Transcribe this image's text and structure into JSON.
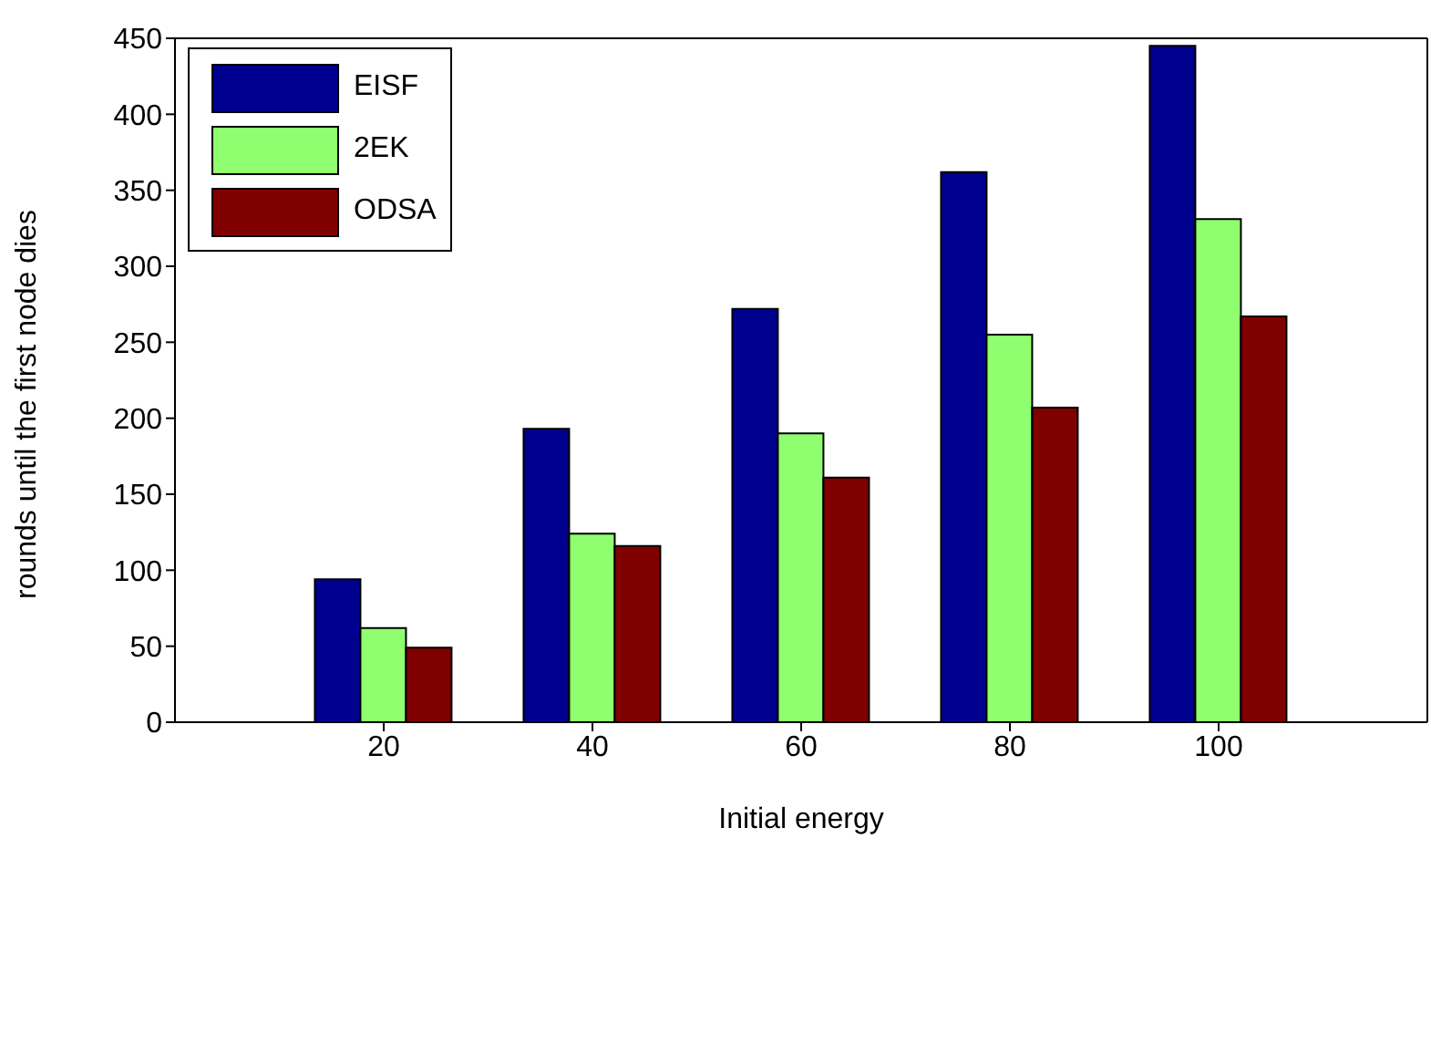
{
  "chart_data": {
    "type": "bar",
    "xlabel": "Initial energy",
    "ylabel": "rounds until the first node dies",
    "categories": [
      "20",
      "40",
      "60",
      "80",
      "100"
    ],
    "series": [
      {
        "name": "EISF",
        "color": "#00008f",
        "values": [
          94,
          193,
          272,
          362,
          445
        ]
      },
      {
        "name": "2EK",
        "color": "#8fff6f",
        "values": [
          62,
          124,
          190,
          255,
          331
        ]
      },
      {
        "name": "ODSA",
        "color": "#800000",
        "values": [
          49,
          116,
          161,
          207,
          267
        ]
      }
    ],
    "ylim": [
      0,
      450
    ],
    "yticks": [
      0,
      50,
      100,
      150,
      200,
      250,
      300,
      350,
      400,
      450
    ],
    "grid": false,
    "legend": "top left"
  }
}
